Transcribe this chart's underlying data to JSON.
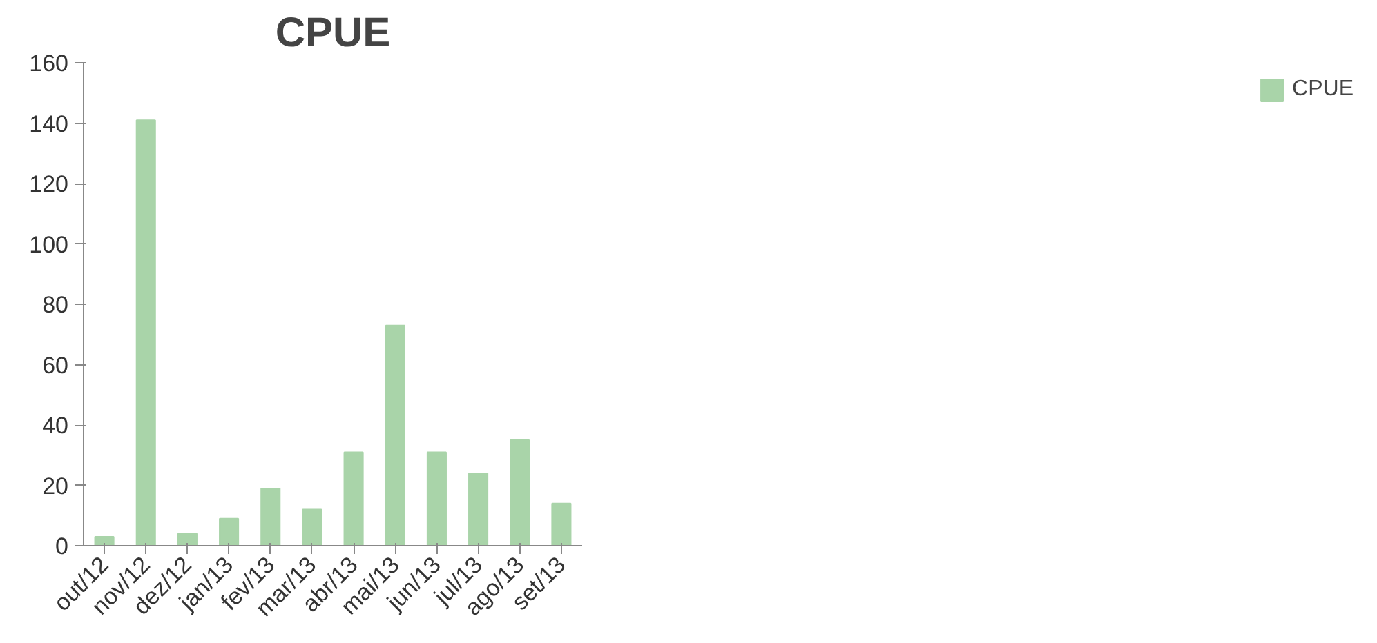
{
  "chart_data": {
    "type": "bar",
    "title": "CPUE",
    "categories": [
      "out/12",
      "nov/12",
      "dez/12",
      "jan/13",
      "fev/13",
      "mar/13",
      "abr/13",
      "mai/13",
      "jun/13",
      "jul/13",
      "ago/13",
      "set/13"
    ],
    "series": [
      {
        "name": "CPUE",
        "color": "#a9d4a9",
        "values": [
          3,
          141,
          4,
          9,
          19,
          12,
          31,
          73,
          31,
          24,
          35,
          14
        ]
      }
    ],
    "ylim": [
      0,
      160
    ],
    "yticks": [
      0,
      20,
      40,
      60,
      80,
      100,
      120,
      140,
      160
    ],
    "grid": false,
    "legend": "right"
  }
}
